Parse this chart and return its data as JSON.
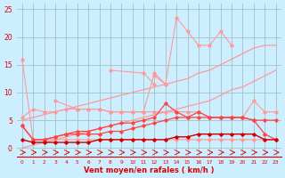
{
  "x": [
    0,
    1,
    2,
    3,
    4,
    5,
    6,
    7,
    8,
    9,
    10,
    11,
    12,
    13,
    14,
    15,
    16,
    17,
    18,
    19,
    20,
    21,
    22,
    23
  ],
  "line_pink_high": [
    null,
    null,
    null,
    null,
    null,
    null,
    null,
    null,
    null,
    null,
    null,
    null,
    13.0,
    11.5,
    23.5,
    21.0,
    18.5,
    18.5,
    21.0,
    18.5,
    null,
    null,
    null,
    null
  ],
  "line_pink_mid": [
    null,
    null,
    null,
    null,
    null,
    null,
    null,
    null,
    14.0,
    null,
    null,
    13.5,
    11.5,
    null,
    null,
    null,
    null,
    null,
    null,
    null,
    null,
    null,
    null,
    null
  ],
  "line_pink_wavy": [
    null,
    null,
    null,
    8.5,
    null,
    7.0,
    7.0,
    7.0,
    6.5,
    6.5,
    6.5,
    6.5,
    13.5,
    11.5,
    null,
    null,
    null,
    null,
    null,
    null,
    null,
    null,
    null,
    null
  ],
  "line_pink_flat": [
    5.5,
    7.0,
    6.5,
    6.5,
    7.0,
    7.0,
    7.0,
    7.0,
    6.5,
    6.5,
    6.5,
    6.5,
    6.5,
    6.5,
    6.5,
    6.5,
    6.5,
    5.5,
    5.5,
    5.5,
    5.5,
    8.5,
    6.5,
    6.5
  ],
  "line_trend_high": [
    5.0,
    5.5,
    6.0,
    6.5,
    7.0,
    7.5,
    8.0,
    8.5,
    9.0,
    9.5,
    10.0,
    10.5,
    11.0,
    11.5,
    12.0,
    12.5,
    13.5,
    14.0,
    15.0,
    16.0,
    17.0,
    18.0,
    18.5,
    18.5
  ],
  "line_trend_low": [
    0.0,
    0.5,
    1.0,
    1.5,
    2.0,
    2.5,
    3.0,
    3.5,
    4.0,
    4.5,
    5.0,
    5.5,
    6.0,
    6.5,
    7.0,
    7.5,
    8.0,
    8.5,
    9.5,
    10.5,
    11.0,
    12.0,
    13.0,
    14.0
  ],
  "line_red_high": [
    4.0,
    1.5,
    1.5,
    2.0,
    2.5,
    3.0,
    3.0,
    3.5,
    4.0,
    4.5,
    4.5,
    5.0,
    5.5,
    8.0,
    6.5,
    5.5,
    6.5,
    5.5,
    5.5,
    5.5,
    5.5,
    5.0,
    2.5,
    1.5
  ],
  "line_red_mid": [
    4.0,
    1.5,
    1.5,
    2.0,
    2.5,
    2.5,
    2.5,
    2.5,
    3.0,
    3.0,
    3.5,
    4.0,
    4.5,
    5.0,
    5.5,
    5.5,
    5.5,
    5.5,
    5.5,
    5.5,
    5.5,
    5.0,
    5.0,
    5.0
  ],
  "line_darkred_flat": [
    1.5,
    1.0,
    1.0,
    1.0,
    1.0,
    1.0,
    1.0,
    1.5,
    1.5,
    1.5,
    1.5,
    1.5,
    1.5,
    1.5,
    2.0,
    2.0,
    2.5,
    2.5,
    2.5,
    2.5,
    2.5,
    2.5,
    1.5,
    1.5
  ],
  "line_pink_drop": [
    16.0,
    1.5,
    1.5,
    1.5,
    1.5,
    1.5,
    1.5,
    1.5,
    1.5,
    1.5,
    1.5,
    1.5,
    1.5,
    1.5,
    1.5,
    1.5,
    1.5,
    1.5,
    1.5,
    1.5,
    1.5,
    1.5,
    1.5,
    1.5
  ],
  "bg_color": "#cceeff",
  "grid_color": "#99bbbb",
  "color_pink": "#ff9999",
  "color_bright_red": "#ff4444",
  "color_red": "#dd0000",
  "color_dark_red": "#cc0000",
  "xlabel": "Vent moyen/en rafales ( km/h )",
  "ylim": [
    -1.5,
    26
  ],
  "xlim": [
    -0.5,
    23.5
  ],
  "yticks": [
    0,
    5,
    10,
    15,
    20,
    25
  ],
  "xticks": [
    0,
    1,
    2,
    3,
    4,
    5,
    6,
    7,
    8,
    9,
    10,
    11,
    12,
    13,
    14,
    15,
    16,
    17,
    18,
    19,
    20,
    21,
    22,
    23
  ]
}
